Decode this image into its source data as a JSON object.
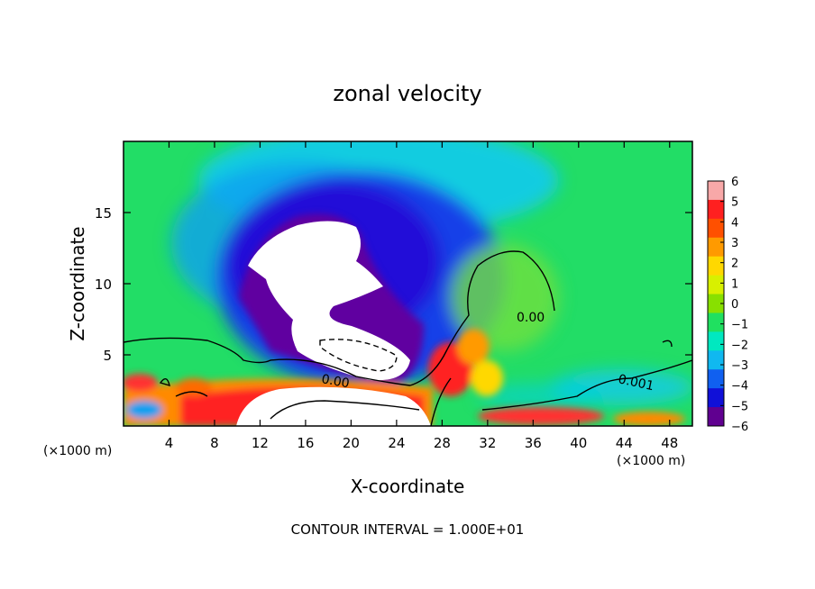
{
  "chart_data": {
    "type": "heatmap",
    "title": "zonal velocity",
    "xlabel": "X-coordinate",
    "ylabel": "Z-coordinate",
    "x_unit_left": "(×1000 m)",
    "x_unit_right": "(×1000 m)",
    "xlim": [
      0,
      50
    ],
    "ylim": [
      0,
      20
    ],
    "xticks": [
      4,
      8,
      12,
      16,
      20,
      24,
      28,
      32,
      36,
      40,
      44,
      48
    ],
    "yticks": [
      5,
      10,
      15
    ],
    "colorbar": {
      "ticks": [
        6,
        5,
        4,
        3,
        2,
        1,
        0,
        -1,
        -2,
        -3,
        -4,
        -5,
        -6
      ],
      "labels": [
        "6",
        "5",
        "4",
        "3",
        "2",
        "1",
        "0",
        "−1",
        "−2",
        "−3",
        "−4",
        "−5",
        "−6"
      ],
      "colors": [
        "#f8a8a8",
        "#ff2020",
        "#ff5000",
        "#ff9a00",
        "#ffd800",
        "#d8f000",
        "#88e000",
        "#20e060",
        "#00e8c0",
        "#10b8f0",
        "#1060f0",
        "#1010d8",
        "#600090"
      ]
    },
    "contour_labels": [
      "0.00",
      "0.00",
      "0.001"
    ],
    "footer": "CONTOUR INTERVAL = 1.000E+01"
  }
}
